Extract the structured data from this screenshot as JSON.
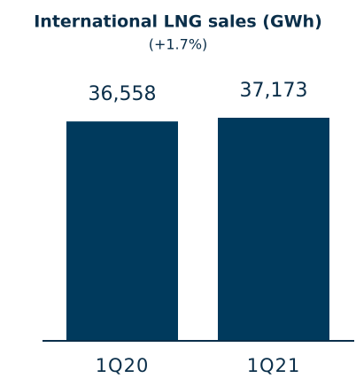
{
  "chart_data": {
    "type": "bar",
    "title": "International LNG sales (GWh)",
    "subtitle": "(+1.7%)",
    "categories": [
      "1Q20",
      "1Q21"
    ],
    "values": [
      36558,
      37173
    ],
    "value_labels": [
      "36,558",
      "37,173"
    ],
    "color": "#003a5d"
  }
}
